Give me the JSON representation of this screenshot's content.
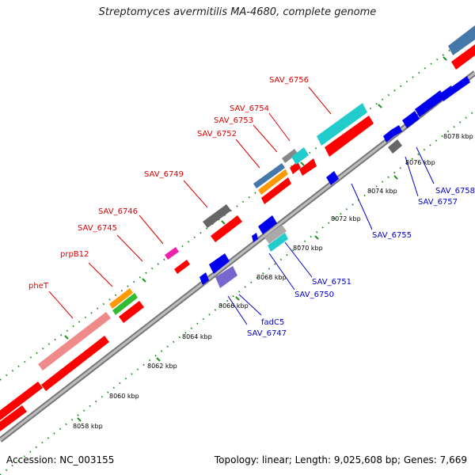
{
  "title": "Streptomyces avermitilis MA-4680, complete genome",
  "footer": {
    "accession": "Accession: NC_003155",
    "summary": "Topology: linear; Length: 9,025,608 bp; Genes: 7,669"
  },
  "colors": {
    "backbone": "#9a9a9a",
    "tick": "#1f8f1f",
    "forward_label": "#dd0000",
    "reverse_label": "#0000cc",
    "cds": "#ff0000",
    "rev_cds": "#0000ee"
  },
  "kbp_labels": [
    "8058 kbp",
    "8060 kbp",
    "8062 kbp",
    "8064 kbp",
    "8066 kbp",
    "8068 kbp",
    "8070 kbp",
    "8072 kbp",
    "8074 kbp",
    "8076 kbp",
    "8078 kbp"
  ],
  "forward_labels": [
    "pheT",
    "prpB12",
    "SAV_6745",
    "SAV_6746",
    "SAV_6749",
    "SAV_6752",
    "SAV_6753",
    "SAV_6754",
    "SAV_6756"
  ],
  "reverse_labels": [
    "SAV_6747",
    "fadC5",
    "SAV_6750",
    "SAV_6751",
    "SAV_6755",
    "SAV_6757",
    "SAV_6758"
  ]
}
